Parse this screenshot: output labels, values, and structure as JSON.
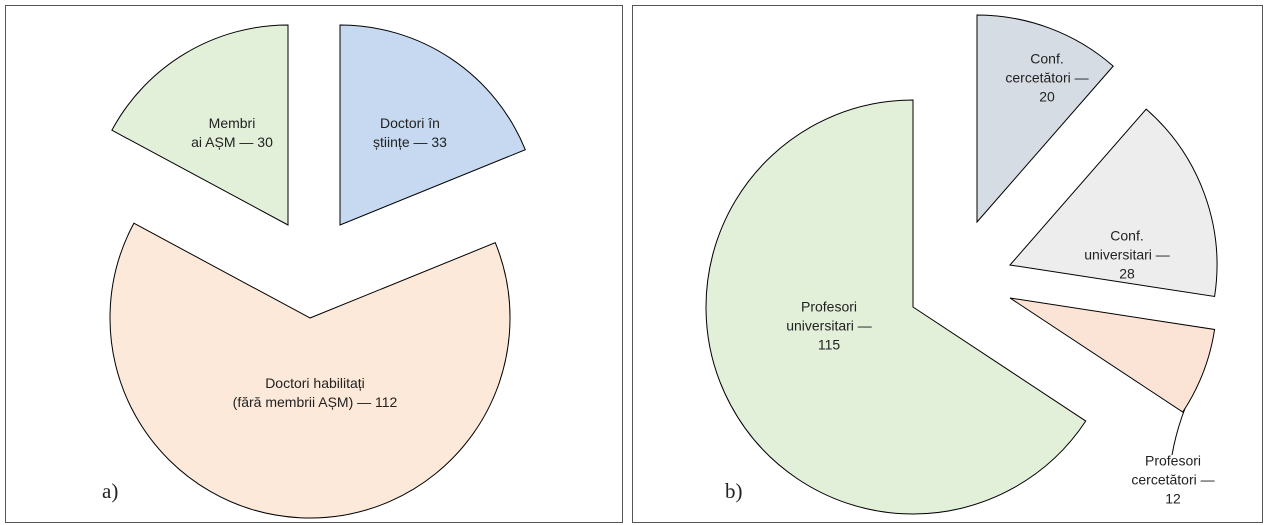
{
  "chart_data": [
    {
      "type": "pie",
      "panel_label": "a)",
      "categories": [
        "Membri\nai AȘM — 30",
        "Doctori în\nștiințe — 33",
        "Doctori habilitați\n(fără membrii AȘM) — 112"
      ],
      "values": [
        30,
        33,
        112
      ],
      "colors": [
        "#e2efd9",
        "#c6d9f0",
        "#fde9d9"
      ]
    },
    {
      "type": "pie",
      "panel_label": "b)",
      "categories": [
        "Conf.\ncercetători —\n20",
        "Conf.\nuniversitari —\n28",
        "Profesori\ncercetători —\n12",
        "Profesori\nuniversitari —\n115"
      ],
      "values": [
        20,
        28,
        12,
        115
      ],
      "colors": [
        "#d6dce4",
        "#ededed",
        "#fbe4d5",
        "#e2efd9"
      ]
    }
  ]
}
